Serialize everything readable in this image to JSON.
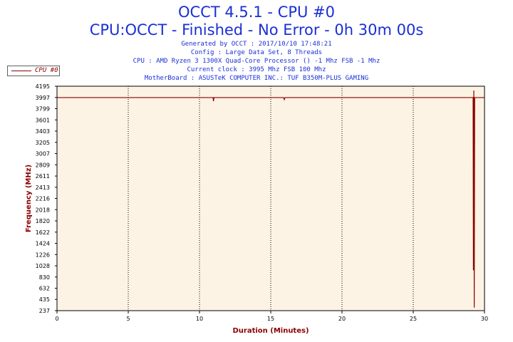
{
  "header": {
    "title": "OCCT 4.5.1 - CPU #0",
    "subtitle": "CPU:OCCT - Finished - No Error - 0h 30m 00s",
    "info_lines": [
      "Generated by OCCT : 2017/10/10 17:48:21",
      "Config : Large Data Set, 8 Threads",
      "CPU : AMD Ryzen 3 1300X Quad-Core Processor () -1 Mhz FSB -1 Mhz",
      "Current clock : 3995 Mhz FSB 100 Mhz",
      "MotherBoard : ASUSTeK COMPUTER INC.: TUF B350M-PLUS GAMING"
    ]
  },
  "colors": {
    "title": "#1a2fd6",
    "series": "#8b0000",
    "plot_background": "#fdf3e4",
    "axis_label": "#8b0000"
  },
  "chart_data": {
    "type": "line",
    "xlabel": "Duration (Minutes)",
    "ylabel": "Frequency (MHz)",
    "xlim": [
      0,
      30
    ],
    "ylim": [
      237,
      4195
    ],
    "x_ticks": [
      0,
      5,
      10,
      15,
      20,
      25,
      30
    ],
    "y_ticks": [
      237,
      435,
      632,
      830,
      1028,
      1226,
      1424,
      1622,
      1820,
      2018,
      2216,
      2413,
      2611,
      2809,
      3007,
      3205,
      3403,
      3601,
      3799,
      3997,
      4195
    ],
    "grid": "vertical dotted",
    "legend_position": "top-left",
    "series": [
      {
        "name": "CPU #0",
        "x": [
          0,
          10.95,
          10.98,
          11.02,
          15.9,
          15.95,
          16.0,
          29.2,
          29.22,
          29.25,
          29.28,
          29.31,
          29.34,
          30
        ],
        "y": [
          3995,
          3995,
          3930,
          3995,
          3995,
          3960,
          3995,
          3995,
          950,
          4120,
          290,
          3995,
          3995,
          3995
        ]
      }
    ]
  }
}
